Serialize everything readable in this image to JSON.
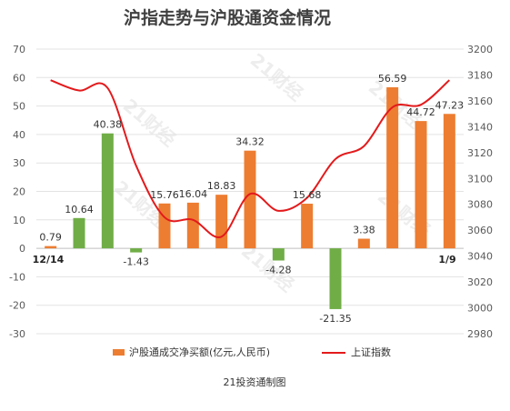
{
  "chart_data": {
    "type": "bar",
    "title": "沪指走势与沪股通资金情况",
    "source": "21投资通制图",
    "watermark": "21财经",
    "x_labels": {
      "first": "12/14",
      "last": "1/9"
    },
    "y_left": {
      "min": -30,
      "max": 70,
      "step": 10
    },
    "y_right": {
      "min": 2980,
      "max": 3200,
      "step": 20
    },
    "colors": {
      "positive": "#ed7d31",
      "negative": "#70ad47",
      "line": "#e31a1c"
    },
    "series": [
      {
        "name": "沪股通成交净买额(亿元,人民币)",
        "type": "bar",
        "axis": "left",
        "values": [
          0.79,
          10.64,
          40.38,
          -1.43,
          15.76,
          16.04,
          18.83,
          34.32,
          -4.28,
          15.68,
          -21.35,
          3.38,
          56.59,
          44.72,
          47.23
        ],
        "labels": [
          "0.79",
          "10.64",
          "40.38",
          "-1.43",
          "15.76",
          "16.04",
          "18.83",
          "34.32",
          "-4.28",
          "15.68",
          "-21.35",
          "3.38",
          "56.59",
          "44.72",
          "47.23"
        ],
        "bar_colors": [
          "#ed7d31",
          "#70ad47",
          "#70ad47",
          "#70ad47",
          "#ed7d31",
          "#ed7d31",
          "#ed7d31",
          "#ed7d31",
          "#70ad47",
          "#ed7d31",
          "#70ad47",
          "#ed7d31",
          "#ed7d31",
          "#ed7d31",
          "#ed7d31"
        ]
      },
      {
        "name": "上证指数",
        "type": "line",
        "axis": "right",
        "values": [
          3176,
          3168,
          3170,
          3110,
          3070,
          3068,
          3055,
          3088,
          3075,
          3085,
          3115,
          3125,
          3155,
          3157,
          3176
        ]
      }
    ]
  }
}
